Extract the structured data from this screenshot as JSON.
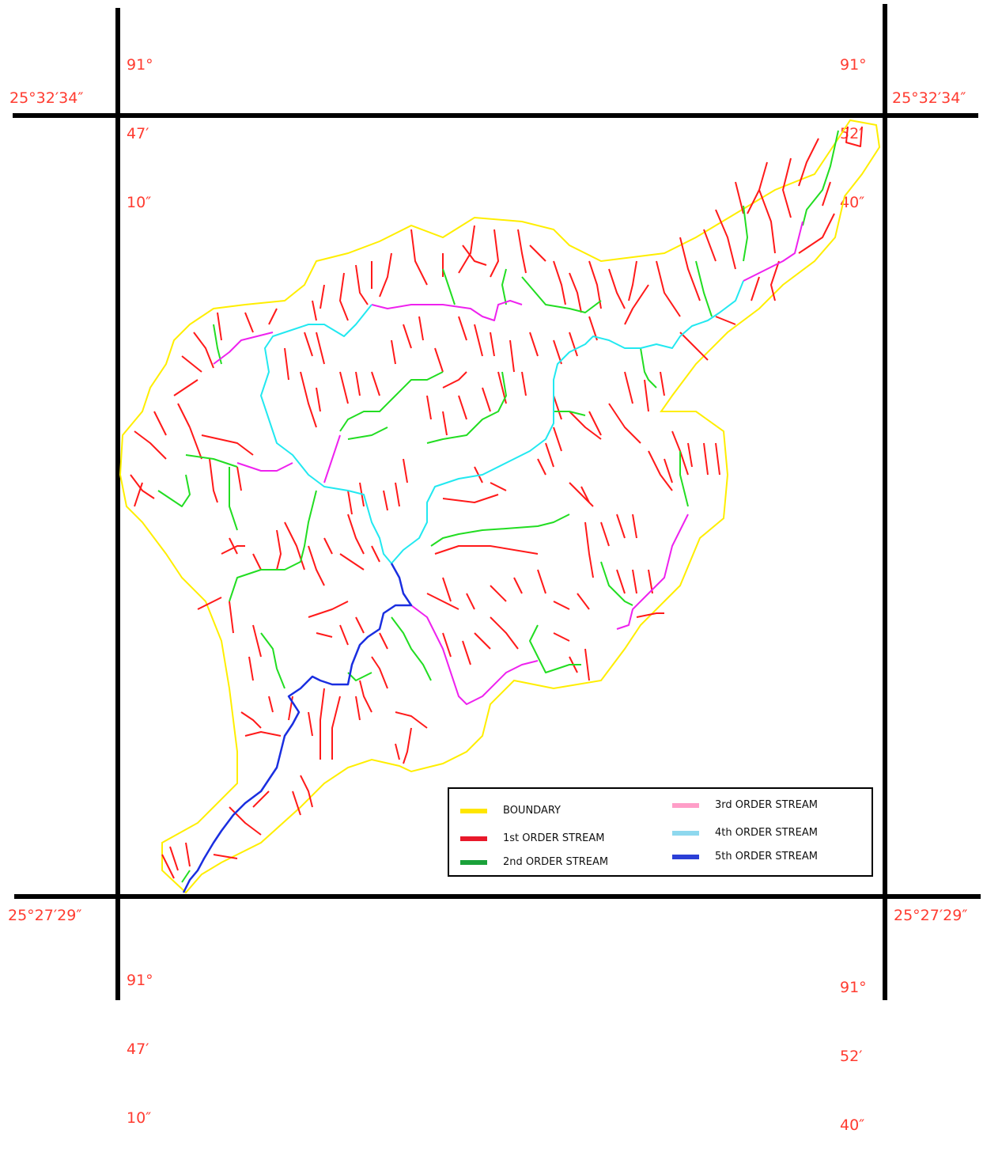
{
  "coordinates": {
    "top_left_lon": [
      "91°",
      "47′",
      "10″"
    ],
    "top_right_lon": [
      "91°",
      "52′",
      "40″"
    ],
    "bottom_left_lon": [
      "91°",
      "47′",
      "10″"
    ],
    "bottom_right_lon": [
      "91°",
      "52′",
      "40″"
    ],
    "top_lat_left": "25°32′34″",
    "top_lat_right": "25°32′34″",
    "bottom_lat_left": "25°27′29″",
    "bottom_lat_right": "25°27′29″"
  },
  "legend": {
    "items": [
      {
        "label": "BOUNDARY",
        "color": "#ffe600"
      },
      {
        "label": "1st ORDER STREAM",
        "color": "#e8182a"
      },
      {
        "label": "2nd ORDER STREAM",
        "color": "#1aa13a"
      },
      {
        "label": "3rd ORDER STREAM",
        "color": "#ff9ec8"
      },
      {
        "label": "4th ORDER STREAM",
        "color": "#8ed8ee"
      },
      {
        "label": "5th ORDER STREAM",
        "color": "#2b3fd6"
      }
    ]
  },
  "colors": {
    "coordinate_text": "#ff3b30",
    "map_1st_order": "#ff1a1a",
    "map_2nd_order": "#22dd22",
    "map_3rd_order": "#ee22ee",
    "map_4th_order": "#22e8f0",
    "map_5th_order": "#1a2ee0",
    "map_boundary": "#ffee00"
  }
}
